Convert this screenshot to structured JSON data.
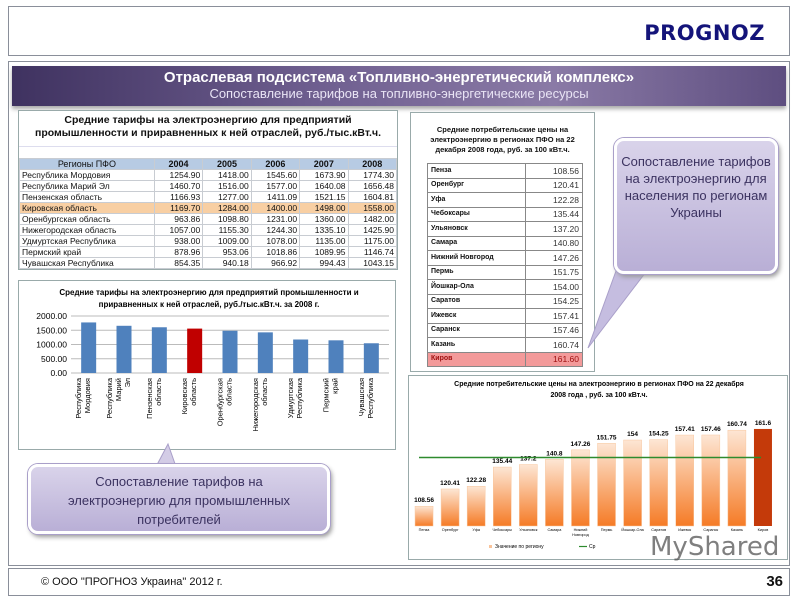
{
  "header": {
    "logo": "PROGNOZ"
  },
  "band": {
    "title": "Отраслевая подсистема «Топливно-энергетический комплекс»",
    "subtitle": "Сопоставление тарифов на топливно-энергетические ресурсы"
  },
  "table1": {
    "title": "Средние тарифы на электроэнергию для предприятий промышленности и приравненных к ней отраслей, руб./тыс.кВт.ч.",
    "columns": [
      "Регионы ПФО",
      "2004",
      "2005",
      "2006",
      "2007",
      "2008"
    ],
    "rows": [
      [
        "Республика Мордовия",
        "1254.90",
        "1418.00",
        "1545.60",
        "1673.90",
        "1774.30"
      ],
      [
        "Республика Марий Эл",
        "1460.70",
        "1516.00",
        "1577.00",
        "1640.08",
        "1656.48"
      ],
      [
        "Пензенская область",
        "1166.93",
        "1277.00",
        "1411.09",
        "1521.15",
        "1604.81"
      ],
      [
        "Кировская область",
        "1169.70",
        "1284.00",
        "1400.00",
        "1498.00",
        "1558.00"
      ],
      [
        "Оренбургская область",
        "963.86",
        "1098.80",
        "1231.00",
        "1360.00",
        "1482.00"
      ],
      [
        "Нижегородская область",
        "1057.00",
        "1155.30",
        "1244.30",
        "1335.10",
        "1425.90"
      ],
      [
        "Удмуртская Республика",
        "938.00",
        "1009.00",
        "1078.00",
        "1135.00",
        "1175.00"
      ],
      [
        "Пермский край",
        "878.96",
        "953.06",
        "1018.86",
        "1089.95",
        "1146.74"
      ],
      [
        "Чувашская Республика",
        "854.35",
        "940.18",
        "966.92",
        "994.43",
        "1043.15"
      ]
    ],
    "highlight_row": 3,
    "highlight_color": "#f8cfa3"
  },
  "table2": {
    "title": "Средние потребительские цены на электроэнергию в регионах ПФО на 22 декабря 2008 года, руб. за 100 кВт.ч.",
    "rows": [
      [
        "Пенза",
        "108.56"
      ],
      [
        "Оренбург",
        "120.41"
      ],
      [
        "Уфа",
        "122.28"
      ],
      [
        "Чебоксары",
        "135.44"
      ],
      [
        "Ульяновск",
        "137.20"
      ],
      [
        "Самара",
        "140.80"
      ],
      [
        "Нижний Новгород",
        "147.26"
      ],
      [
        "Пермь",
        "151.75"
      ],
      [
        "Йошкар-Ола",
        "154.00"
      ],
      [
        "Саратов",
        "154.25"
      ],
      [
        "Ижевск",
        "157.41"
      ],
      [
        "Саранск",
        "157.46"
      ],
      [
        "Казань",
        "160.74"
      ],
      [
        "Киров",
        "161.60"
      ]
    ],
    "highlight_row": 13,
    "highlight_color": "#f39a9a"
  },
  "callouts": {
    "right": "Сопоставление тарифов на электроэнергию для населения по регионам Украины",
    "left": "Сопоставление тарифов на электроэнергию для промышленных потребителей"
  },
  "chart_data": [
    {
      "type": "bar",
      "title": "Средние тарифы на электроэнергию для предприятий промышленности и приравненных к ней отраслей, руб./тыс.кВт.ч. за 2008 г.",
      "categories": [
        "Республика Мордовия",
        "Республика Марий Эл",
        "Пензенская область",
        "Кировская область",
        "Оренбургская область",
        "Нижегородская область",
        "Удмуртская Республика",
        "Пермский край",
        "Чувашская Республика"
      ],
      "values": [
        1774.3,
        1656.48,
        1604.81,
        1558.0,
        1482.0,
        1425.9,
        1175.0,
        1146.74,
        1043.15
      ],
      "ylim": [
        0,
        2000
      ],
      "yticks": [
        "0.00",
        "500.00",
        "1000.00",
        "1500.00",
        "2000.00"
      ],
      "grid": true,
      "colors": {
        "bar": "#4f81bd",
        "highlight": "#c00000"
      },
      "highlight_index": 3
    },
    {
      "type": "bar",
      "title": "Средние потребительские цены на электроэнергию в регионах ПФО на 22 декабря 2008 года , руб. за 100 кВт.ч.",
      "categories": [
        "Пенза",
        "Оренбург",
        "Уфа",
        "Чебоксары",
        "Ульяновск",
        "Самара",
        "Нижний Новгород",
        "Пермь",
        "Йошкар-Ола",
        "Саратов",
        "Ижевск",
        "Саранск",
        "Казань",
        "Киров"
      ],
      "values": [
        108.56,
        120.41,
        122.28,
        135.44,
        137.2,
        140.8,
        147.26,
        151.75,
        154,
        154.25,
        157.41,
        157.46,
        160.74,
        161.6
      ],
      "labels": [
        "108.56",
        "120.41",
        "122.28",
        "135.44",
        "137.2",
        "140.8",
        "147.26",
        "151.75",
        "154",
        "154.25",
        "157.41",
        "157.46",
        "160.74",
        "161.6"
      ],
      "average_line": 142,
      "ylim": [
        100,
        165
      ],
      "legend": [
        "Значение по региону",
        "Ср"
      ],
      "legend_position": "bottom",
      "colors": {
        "bar": "#f58a3c",
        "highlight": "#c43a0a",
        "line": "#2e8b2e"
      },
      "highlight_index": 13
    }
  ],
  "watermark": "MyShared",
  "footer": {
    "copyright": "© ООО \"ПРОГНОЗ Украина\" 2012  г.",
    "page": "36"
  }
}
